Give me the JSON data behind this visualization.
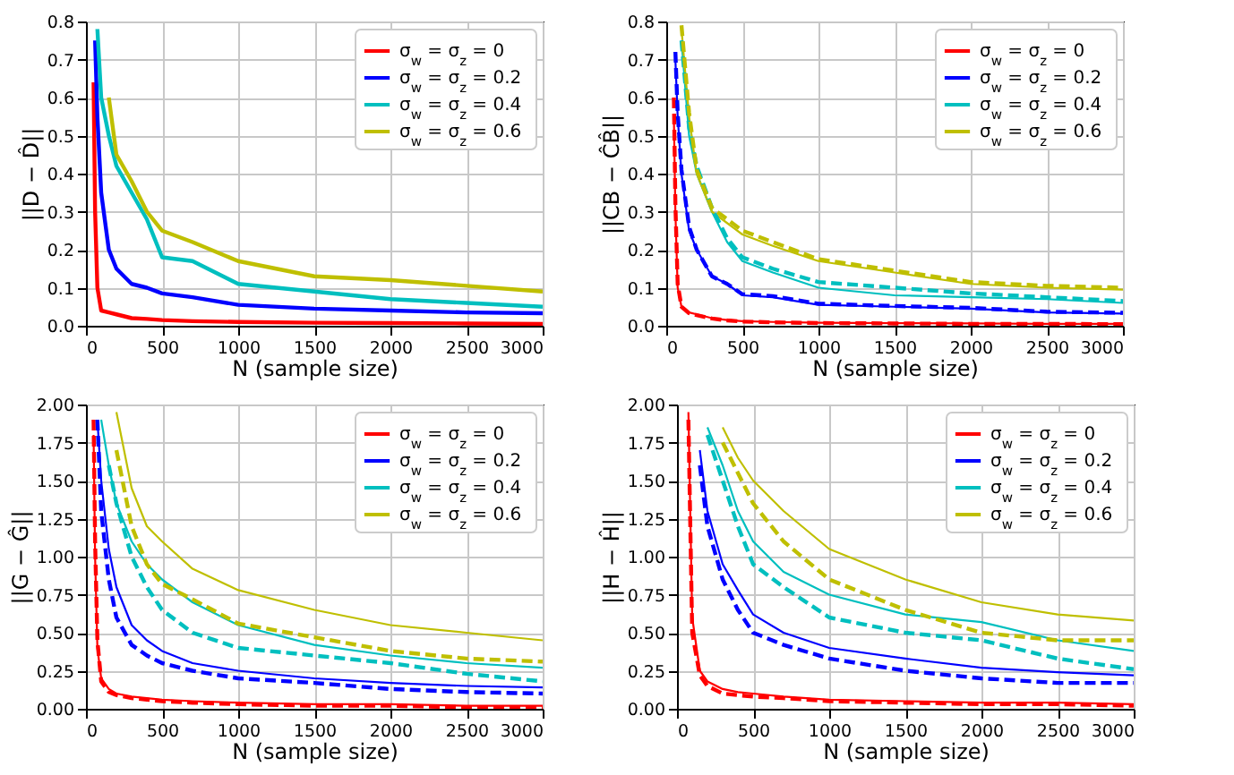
{
  "chart_data": [
    {
      "type": "line",
      "xlabel": "N (sample size)",
      "ylabel": "||D − D̂||",
      "grid": true,
      "legend": "top right",
      "x": [
        50,
        60,
        75,
        100,
        150,
        200,
        300,
        400,
        500,
        700,
        1000,
        1500,
        2000,
        2500,
        3000
      ],
      "xlim": [
        0,
        3000
      ],
      "xticks": [
        0,
        500,
        1000,
        1500,
        2000,
        2500,
        3000
      ],
      "ylim": [
        0,
        0.8
      ],
      "yticks": [
        {
          "value": 0,
          "label": "0.0"
        },
        0.1,
        0.2,
        0.3,
        0.4,
        0.5,
        0.6,
        0.7,
        0.8
      ],
      "series": [
        {
          "name": "σ$_{w}$ = σ$_{z}$ = 0",
          "color": "#ff0000",
          "values": [
            0.64,
            0.3,
            0.1,
            0.04,
            0.035,
            0.03,
            0.02,
            0.018,
            0.015,
            0.012,
            0.01,
            0.008,
            0.007,
            0.006,
            0.005
          ]
        },
        {
          "name": "σ$_{w}$ = σ$_{z}$ = 0.2",
          "color": "#0000ff",
          "values": [
            null,
            0.75,
            0.55,
            0.35,
            0.2,
            0.15,
            0.11,
            0.1,
            0.085,
            0.075,
            0.055,
            0.045,
            0.04,
            0.035,
            0.033
          ]
        },
        {
          "name": "σ$_{w}$ = σ$_{z}$ = 0.4",
          "color": "#00bfbf",
          "values": [
            null,
            null,
            0.78,
            0.6,
            0.5,
            0.42,
            0.35,
            0.28,
            0.18,
            0.17,
            0.11,
            0.09,
            0.07,
            0.06,
            0.05
          ]
        },
        {
          "name": "σ$_{w}$ = σ$_{z}$ = 0.6",
          "color": "#bfbf00",
          "values": [
            null,
            null,
            null,
            null,
            0.6,
            0.45,
            0.38,
            0.3,
            0.25,
            0.22,
            0.17,
            0.13,
            0.12,
            0.105,
            0.09
          ]
        }
      ]
    },
    {
      "type": "line",
      "xlabel": "N (sample size)",
      "ylabel": "||CB − ĈB̂||",
      "grid": true,
      "legend": "top right",
      "x": [
        50,
        60,
        75,
        100,
        150,
        200,
        300,
        400,
        500,
        700,
        1000,
        1500,
        2000,
        2500,
        3000
      ],
      "xlim": [
        0,
        3000
      ],
      "xticks": [
        0,
        500,
        1000,
        1500,
        2000,
        2500,
        3000
      ],
      "ylim": [
        0,
        0.8
      ],
      "yticks": [
        {
          "value": 0,
          "label": "0.0"
        },
        0.1,
        0.2,
        0.3,
        0.4,
        0.5,
        0.6,
        0.7,
        0.8
      ],
      "series": [
        {
          "name": "σ$_{w}$ = σ$_{z}$ = 0",
          "color": "#ff0000",
          "values": [
            0.55,
            0.3,
            0.1,
            0.05,
            0.035,
            0.03,
            0.02,
            0.015,
            0.012,
            0.01,
            0.008,
            0.007,
            0.006,
            0.005,
            0.005
          ]
        },
        {
          "name": "σ$_{w}$ = σ$_{z}$ = 0.2",
          "color": "#0000ff",
          "values": [
            null,
            0.7,
            0.55,
            0.4,
            0.25,
            0.2,
            0.13,
            0.11,
            0.08,
            0.075,
            0.055,
            0.05,
            0.045,
            0.035,
            0.032
          ]
        },
        {
          "name": "σ$_{w}$ = σ$_{z}$ = 0.4",
          "color": "#00bfbf",
          "values": [
            null,
            null,
            null,
            0.75,
            0.5,
            0.4,
            0.3,
            0.22,
            0.17,
            0.14,
            0.1,
            0.08,
            0.075,
            0.07,
            0.06
          ]
        },
        {
          "name": "σ$_{w}$ = σ$_{z}$ = 0.6",
          "color": "#bfbf00",
          "values": [
            null,
            null,
            null,
            0.78,
            0.55,
            0.4,
            0.3,
            0.27,
            0.24,
            0.21,
            0.17,
            0.14,
            0.11,
            0.1,
            0.095
          ]
        },
        {
          "color": "#ff0000",
          "line_style": "dashed",
          "values": [
            0.6,
            0.32,
            0.11,
            0.05,
            0.033,
            0.028,
            0.019,
            0.014,
            0.011,
            0.009,
            0.007,
            0.006,
            0.005,
            0.005,
            0.004
          ]
        },
        {
          "color": "#0000ff",
          "line_style": "dashed",
          "values": [
            null,
            0.72,
            0.56,
            0.41,
            0.26,
            0.2,
            0.13,
            0.11,
            0.083,
            0.078,
            0.058,
            0.052,
            0.047,
            0.037,
            0.034
          ]
        },
        {
          "color": "#00bfbf",
          "line_style": "dashed",
          "values": [
            null,
            null,
            null,
            0.75,
            0.52,
            0.42,
            0.31,
            0.23,
            0.18,
            0.15,
            0.115,
            0.1,
            0.085,
            0.075,
            0.065
          ]
        },
        {
          "color": "#bfbf00",
          "line_style": "dashed",
          "values": [
            null,
            null,
            null,
            0.79,
            0.56,
            0.41,
            0.31,
            0.28,
            0.25,
            0.22,
            0.175,
            0.145,
            0.115,
            0.105,
            0.1
          ]
        }
      ]
    },
    {
      "type": "line",
      "xlabel": "N (sample size)",
      "ylabel": "||G − Ĝ||",
      "grid": true,
      "legend": "top right",
      "x": [
        50,
        60,
        75,
        100,
        150,
        200,
        300,
        400,
        500,
        700,
        1000,
        1500,
        2000,
        2500,
        3000
      ],
      "xlim": [
        0,
        3000
      ],
      "xticks": [
        0,
        500,
        1000,
        1500,
        2000,
        2500,
        3000
      ],
      "ylim": [
        0,
        2
      ],
      "yticks": [
        {
          "value": 0,
          "label": "0.00"
        },
        0.25,
        {
          "value": 0.5,
          "label": "0.50"
        },
        0.75,
        {
          "value": 1,
          "label": "1.00"
        },
        1.25,
        {
          "value": 1.5,
          "label": "1.50"
        },
        1.75,
        {
          "value": 2,
          "label": "2.00"
        }
      ],
      "series": [
        {
          "name": "σ$_{w}$ = σ$_{z}$ = 0",
          "color": "#ff0000",
          "values": [
            1.8,
            1.0,
            0.4,
            0.2,
            0.13,
            0.1,
            0.08,
            0.07,
            0.06,
            0.05,
            0.04,
            0.03,
            0.03,
            0.02,
            0.02
          ]
        },
        {
          "name": "σ$_{w}$ = σ$_{z}$ = 0.2",
          "color": "#0000ff",
          "values": [
            null,
            null,
            1.9,
            1.5,
            1.05,
            0.8,
            0.55,
            0.45,
            0.38,
            0.3,
            0.25,
            0.2,
            0.17,
            0.15,
            0.14
          ]
        },
        {
          "name": "σ$_{w}$ = σ$_{z}$ = 0.4",
          "color": "#00bfbf",
          "values": [
            null,
            null,
            null,
            1.9,
            1.6,
            1.35,
            1.1,
            0.95,
            0.85,
            0.7,
            0.55,
            0.42,
            0.35,
            0.3,
            0.27
          ]
        },
        {
          "name": "σ$_{w}$ = σ$_{z}$ = 0.6",
          "color": "#bfbf00",
          "values": [
            null,
            null,
            null,
            null,
            null,
            1.95,
            1.45,
            1.2,
            1.1,
            0.92,
            0.78,
            0.65,
            0.55,
            0.5,
            0.45
          ]
        },
        {
          "color": "#ff0000",
          "line_style": "dashed",
          "values": [
            1.9,
            1.1,
            0.45,
            0.18,
            0.11,
            0.09,
            0.07,
            0.06,
            0.05,
            0.04,
            0.03,
            0.02,
            0.02,
            0.01,
            0.01
          ]
        },
        {
          "color": "#0000ff",
          "line_style": "dashed",
          "values": [
            null,
            null,
            1.9,
            1.3,
            0.85,
            0.6,
            0.42,
            0.35,
            0.3,
            0.25,
            0.2,
            0.17,
            0.13,
            0.11,
            0.1
          ]
        },
        {
          "color": "#00bfbf",
          "line_style": "dashed",
          "values": [
            null,
            null,
            null,
            null,
            1.6,
            1.35,
            1.0,
            0.8,
            0.65,
            0.5,
            0.4,
            0.35,
            0.3,
            0.23,
            0.18
          ]
        },
        {
          "color": "#bfbf00",
          "line_style": "dashed",
          "values": [
            null,
            null,
            null,
            null,
            null,
            1.7,
            1.2,
            0.95,
            0.82,
            0.72,
            0.56,
            0.47,
            0.38,
            0.33,
            0.31
          ]
        }
      ]
    },
    {
      "type": "line",
      "xlabel": "N (sample size)",
      "ylabel": "||H − Ĥ||",
      "grid": true,
      "legend": "top right",
      "x": [
        75,
        100,
        150,
        200,
        300,
        400,
        500,
        700,
        1000,
        1500,
        2000,
        2500,
        3000
      ],
      "xlim": [
        0,
        3000
      ],
      "xticks": [
        0,
        500,
        1000,
        1500,
        2000,
        2500,
        3000
      ],
      "ylim": [
        0,
        2
      ],
      "yticks": [
        {
          "value": 0,
          "label": "0.00"
        },
        0.25,
        {
          "value": 0.5,
          "label": "0.50"
        },
        0.75,
        {
          "value": 1,
          "label": "1.00"
        },
        1.25,
        {
          "value": 1.5,
          "label": "1.50"
        },
        1.75,
        {
          "value": 2,
          "label": "2.00"
        }
      ],
      "series": [
        {
          "name": "σ$_{w}$ = σ$_{z}$ = 0",
          "color": "#ff0000",
          "values": [
            1.95,
            0.6,
            0.25,
            0.18,
            0.13,
            0.11,
            0.1,
            0.08,
            0.06,
            0.05,
            0.04,
            0.04,
            0.03
          ]
        },
        {
          "name": "σ$_{w}$ = σ$_{z}$ = 0.2",
          "color": "#0000ff",
          "values": [
            null,
            null,
            1.7,
            1.3,
            0.95,
            0.78,
            0.62,
            0.5,
            0.4,
            0.33,
            0.27,
            0.24,
            0.22
          ]
        },
        {
          "name": "σ$_{w}$ = σ$_{z}$ = 0.4",
          "color": "#00bfbf",
          "values": [
            null,
            null,
            null,
            1.85,
            1.6,
            1.3,
            1.1,
            0.9,
            0.75,
            0.62,
            0.57,
            0.45,
            0.38
          ]
        },
        {
          "name": "σ$_{w}$ = σ$_{z}$ = 0.6",
          "color": "#bfbf00",
          "values": [
            null,
            null,
            null,
            null,
            1.85,
            1.65,
            1.5,
            1.3,
            1.05,
            0.85,
            0.7,
            0.62,
            0.58
          ]
        },
        {
          "color": "#ff0000",
          "line_style": "dashed",
          "values": [
            1.9,
            0.5,
            0.22,
            0.15,
            0.1,
            0.09,
            0.08,
            0.07,
            0.05,
            0.04,
            0.03,
            0.03,
            0.02
          ]
        },
        {
          "color": "#0000ff",
          "line_style": "dashed",
          "values": [
            null,
            null,
            1.6,
            1.2,
            0.85,
            0.65,
            0.5,
            0.42,
            0.33,
            0.25,
            0.2,
            0.17,
            0.17
          ]
        },
        {
          "color": "#00bfbf",
          "line_style": "dashed",
          "values": [
            null,
            null,
            null,
            1.8,
            1.5,
            1.2,
            0.95,
            0.8,
            0.6,
            0.5,
            0.45,
            0.33,
            0.26
          ]
        },
        {
          "color": "#bfbf00",
          "line_style": "dashed",
          "values": [
            null,
            null,
            null,
            null,
            1.75,
            1.55,
            1.35,
            1.1,
            0.85,
            0.65,
            0.5,
            0.45,
            0.45
          ]
        }
      ]
    }
  ]
}
